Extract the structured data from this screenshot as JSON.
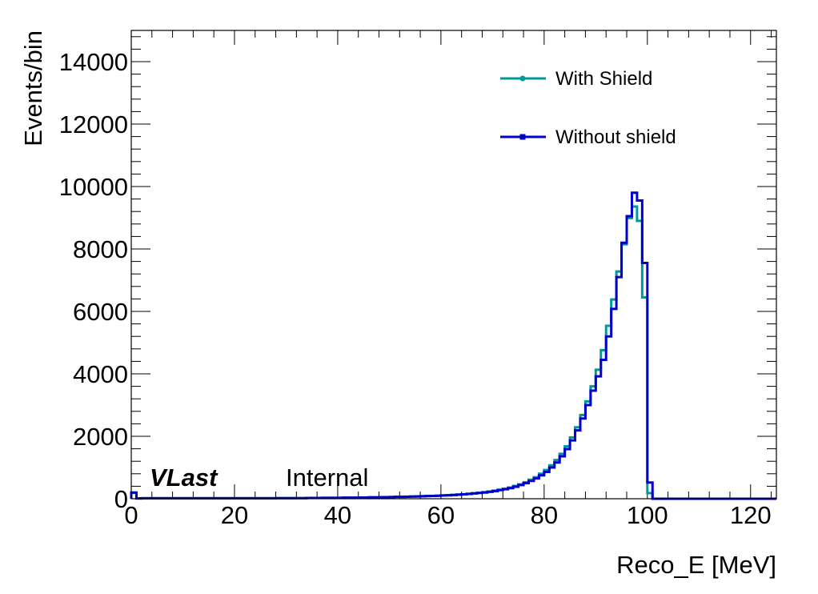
{
  "chart_data": {
    "type": "line",
    "step": true,
    "xlabel": "Reco_E [MeV]",
    "ylabel": "Events/bin",
    "xlim": [
      0,
      125
    ],
    "ylim": [
      0,
      15000
    ],
    "x_ticks": [
      0,
      20,
      40,
      60,
      80,
      100,
      120
    ],
    "y_ticks": [
      0,
      2000,
      4000,
      6000,
      8000,
      10000,
      12000,
      14000
    ],
    "legend_position": "top-right",
    "brand": "VLast",
    "brand_tag": "Internal",
    "bin_width": 1,
    "series": [
      {
        "name": "With Shield",
        "color": "#009999",
        "marker": "circle",
        "values": [
          190,
          10,
          15,
          15,
          15,
          15,
          15,
          15,
          15,
          15,
          15,
          15,
          15,
          15,
          15,
          15,
          15,
          15,
          15,
          15,
          15,
          15,
          15,
          15,
          15,
          15,
          15,
          15,
          20,
          20,
          20,
          20,
          20,
          20,
          25,
          25,
          25,
          30,
          30,
          30,
          30,
          35,
          35,
          35,
          40,
          40,
          45,
          45,
          50,
          50,
          55,
          60,
          60,
          65,
          70,
          75,
          80,
          85,
          90,
          95,
          105,
          115,
          125,
          135,
          145,
          160,
          175,
          190,
          210,
          230,
          260,
          290,
          320,
          360,
          410,
          460,
          530,
          610,
          690,
          800,
          920,
          1070,
          1240,
          1440,
          1680,
          1960,
          2290,
          2680,
          3120,
          3600,
          4130,
          4760,
          5540,
          6380,
          7280,
          8150,
          8990,
          9360,
          8900,
          6450,
          180,
          0,
          0,
          0,
          0,
          0,
          0,
          0,
          0,
          0,
          0,
          0,
          0,
          0,
          0,
          0,
          0,
          0,
          0,
          0,
          0,
          0,
          0,
          0,
          0
        ]
      },
      {
        "name": "Without shield",
        "color": "#0000cc",
        "marker": "square",
        "values": [
          200,
          10,
          15,
          15,
          15,
          15,
          15,
          15,
          15,
          15,
          15,
          15,
          15,
          15,
          15,
          15,
          15,
          15,
          15,
          15,
          15,
          15,
          15,
          15,
          15,
          15,
          15,
          15,
          20,
          20,
          20,
          20,
          20,
          20,
          25,
          25,
          25,
          30,
          30,
          30,
          30,
          35,
          35,
          35,
          40,
          40,
          45,
          45,
          50,
          50,
          55,
          60,
          60,
          65,
          70,
          75,
          80,
          85,
          90,
          95,
          105,
          110,
          120,
          130,
          140,
          155,
          170,
          185,
          200,
          220,
          245,
          275,
          305,
          340,
          385,
          440,
          500,
          570,
          650,
          750,
          860,
          1000,
          1160,
          1360,
          1590,
          1870,
          2190,
          2570,
          3000,
          3460,
          3920,
          4450,
          5200,
          6080,
          7100,
          8200,
          9050,
          9800,
          9550,
          7550,
          520,
          0,
          0,
          0,
          0,
          0,
          0,
          0,
          0,
          0,
          0,
          0,
          0,
          0,
          0,
          0,
          0,
          0,
          0,
          0,
          0,
          0,
          0,
          0,
          0
        ]
      }
    ]
  }
}
